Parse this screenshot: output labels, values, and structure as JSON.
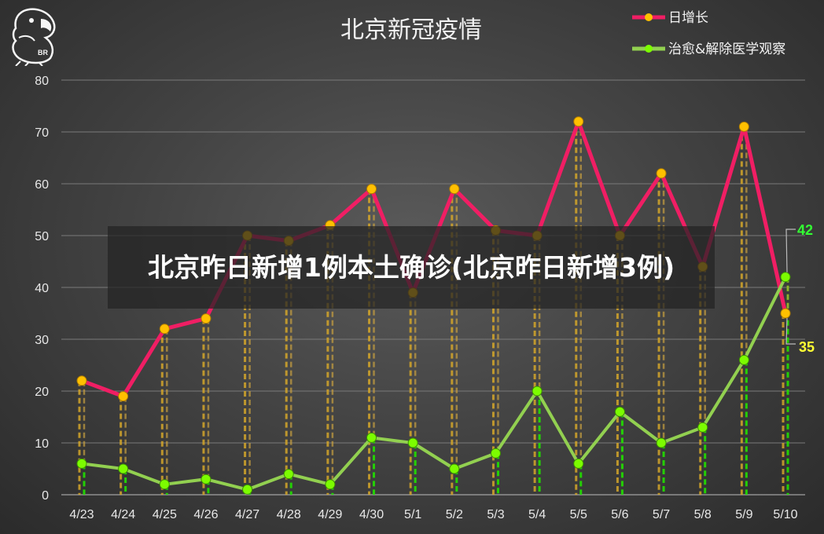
{
  "chart_data": {
    "type": "line",
    "title": "北京新冠疫情",
    "categories": [
      "4/23",
      "4/24",
      "4/25",
      "4/26",
      "4/27",
      "4/28",
      "4/29",
      "4/30",
      "5/1",
      "5/2",
      "5/3",
      "5/4",
      "5/5",
      "5/6",
      "5/7",
      "5/8",
      "5/9",
      "5/10"
    ],
    "series": [
      {
        "name": "日增长",
        "color": "#f01e64",
        "marker": "#ffc000",
        "values": [
          22,
          19,
          32,
          34,
          50,
          49,
          52,
          59,
          39,
          59,
          51,
          50,
          72,
          50,
          62,
          44,
          71,
          35
        ]
      },
      {
        "name": "治愈&解除医学观察",
        "color": "#92d050",
        "marker": "#7cfc00",
        "values": [
          6,
          5,
          2,
          3,
          1,
          4,
          2,
          11,
          10,
          5,
          8,
          20,
          6,
          16,
          10,
          13,
          26,
          42
        ]
      }
    ],
    "ylim": [
      0,
      80
    ],
    "yticks": [
      "0",
      "10",
      "20",
      "30",
      "40",
      "50",
      "60",
      "70",
      "80"
    ],
    "grid": true,
    "legend_position": "top-right",
    "end_labels": {
      "series_1": "35",
      "series_2": "42"
    }
  },
  "overlay_text": "北京昨日新增1例本土确诊(北京昨日新增3例)",
  "logo_text": "BR"
}
